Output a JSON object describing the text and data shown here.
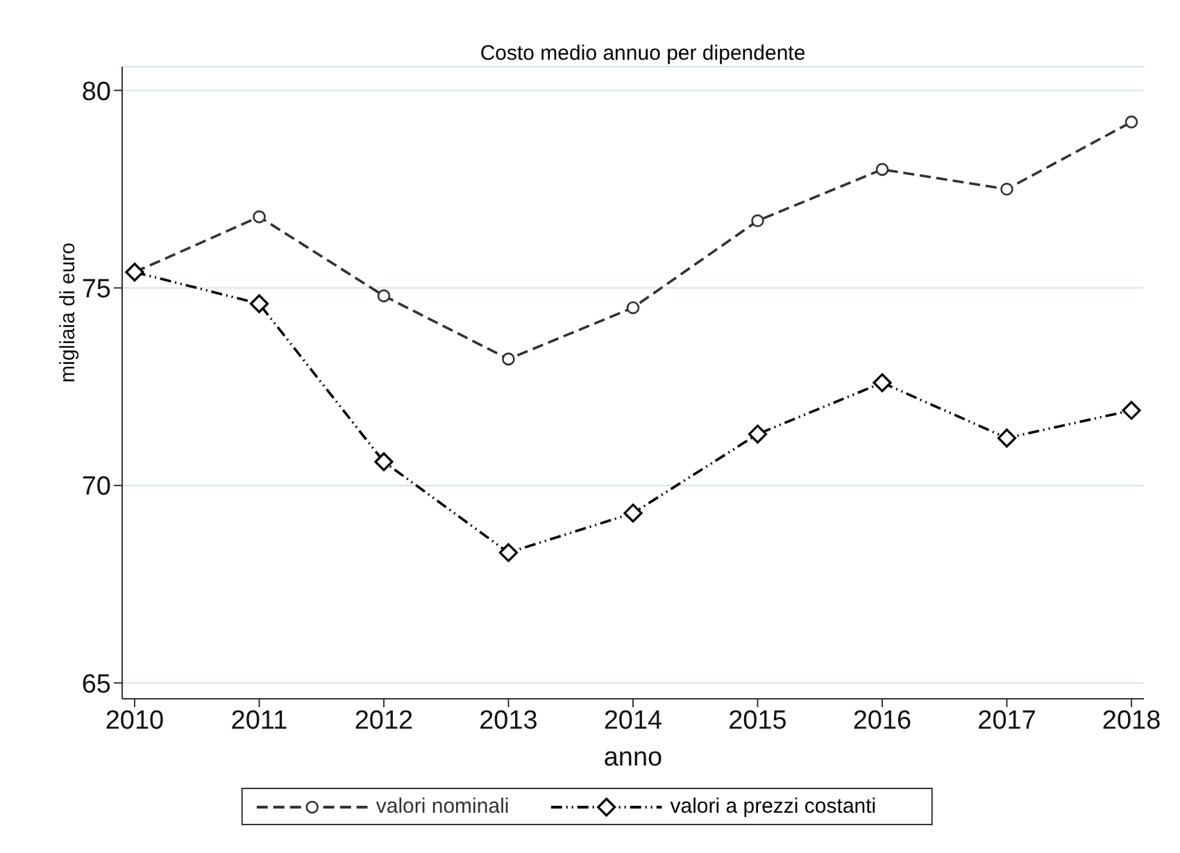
{
  "chart_data": {
    "type": "line",
    "title": "Costo medio annuo per dipendente",
    "xlabel": "anno",
    "ylabel": "migliaia di euro",
    "x": [
      2010,
      2011,
      2012,
      2013,
      2014,
      2015,
      2016,
      2017,
      2018
    ],
    "xlim": [
      2009.9,
      2018.1
    ],
    "xticks": [
      2010,
      2011,
      2012,
      2013,
      2014,
      2015,
      2016,
      2017,
      2018
    ],
    "ylim": [
      64.6,
      80.6
    ],
    "yticks": [
      65,
      70,
      75,
      80
    ],
    "grid": "y",
    "legend": "bottom",
    "series": [
      {
        "name": "valori nominali",
        "color": "#333333",
        "marker": "circle",
        "line_style": "dashed",
        "values": [
          75.4,
          76.8,
          74.8,
          73.2,
          74.5,
          76.7,
          78.0,
          77.5,
          79.2
        ]
      },
      {
        "name": "valori a prezzi costanti",
        "color": "#000000",
        "marker": "diamond",
        "line_style": "dotted",
        "values": [
          75.4,
          74.6,
          70.6,
          68.3,
          69.3,
          71.3,
          72.6,
          71.2,
          71.9
        ]
      }
    ]
  }
}
